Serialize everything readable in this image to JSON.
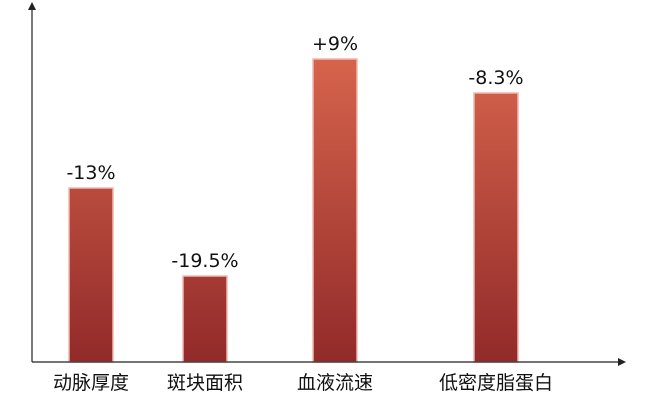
{
  "chart_data": {
    "type": "bar",
    "categories": [
      "动脉厚度",
      "斑块面积",
      "血液流速",
      "低密度脂蛋白"
    ],
    "values": [
      -13,
      -19.5,
      9,
      -8.3
    ],
    "data_labels": [
      "-13%",
      "-19.5%",
      "+9%",
      "-8.3%"
    ],
    "title": "",
    "xlabel": "",
    "ylabel": "",
    "grid": false,
    "legend": "none",
    "colors": {
      "bar_top": "#d6644c",
      "bar_bottom": "#922a2a",
      "bar_outline": "#f2b8ae",
      "axis": "#222222"
    }
  }
}
